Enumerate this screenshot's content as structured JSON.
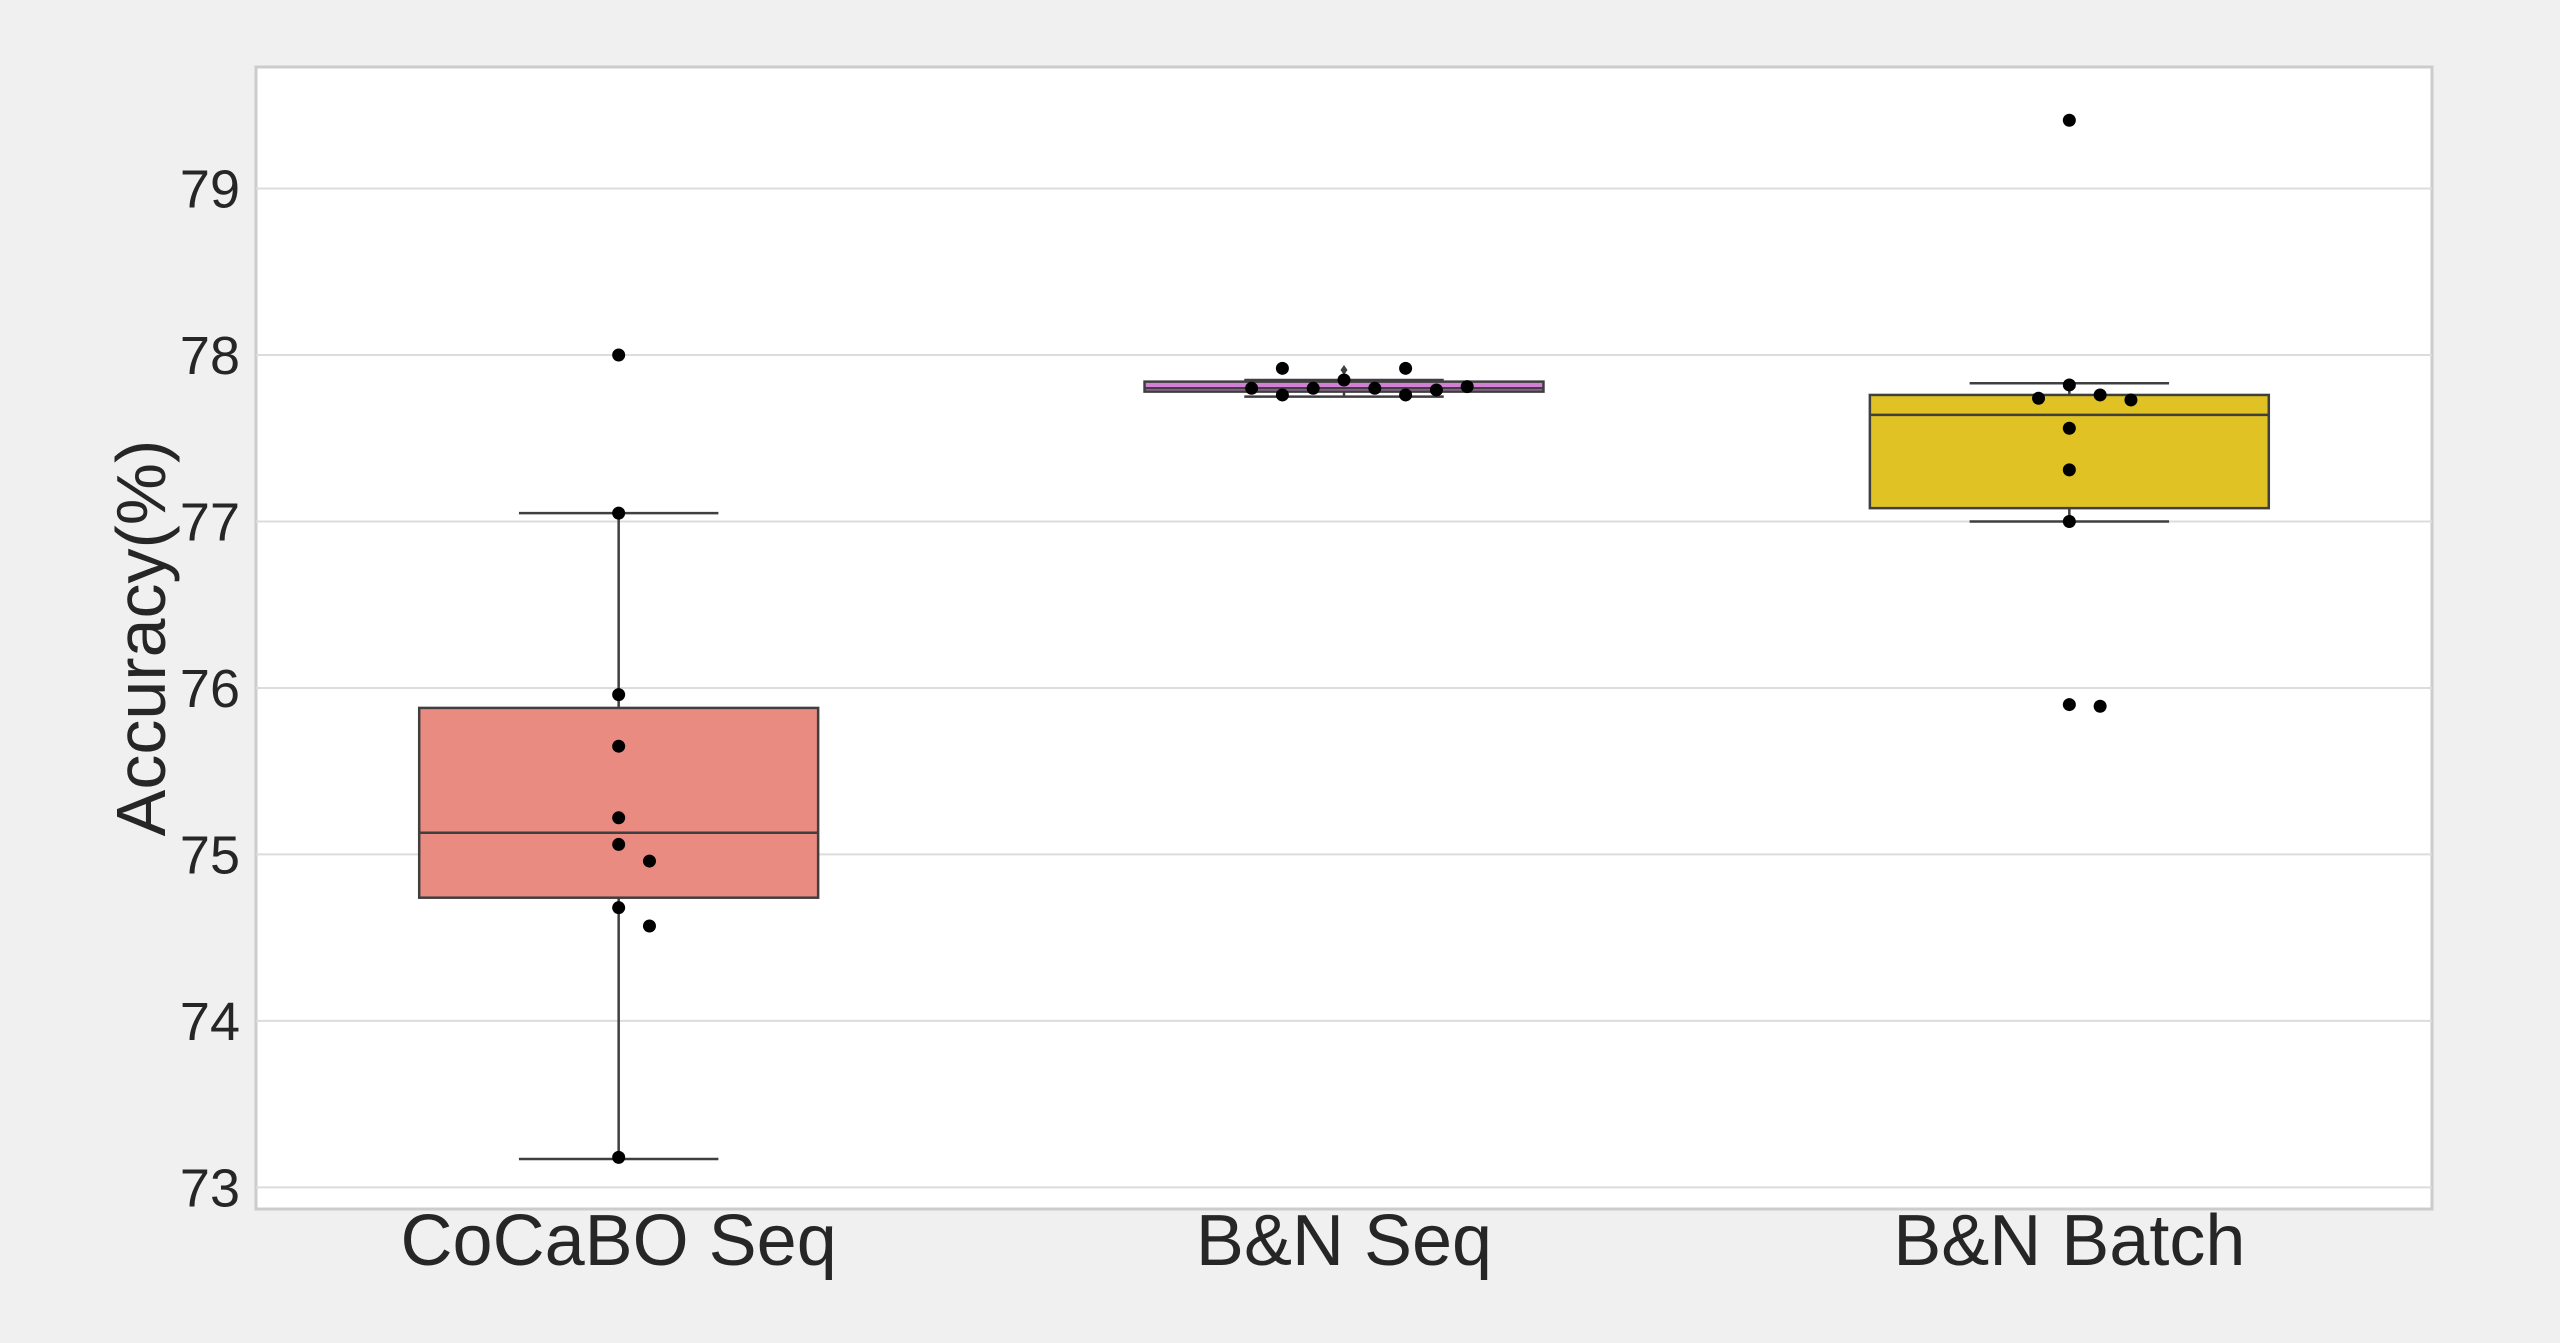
{
  "chart_data": {
    "type": "box",
    "ylabel": "Accuracy(%)",
    "xlabel": "",
    "title": "",
    "ylim": [
      72.87,
      79.73
    ],
    "yticks": [
      73,
      74,
      75,
      76,
      77,
      78,
      79
    ],
    "grid": true,
    "categories": [
      "CoCaBO Seq",
      "B&N Seq",
      "B&N Batch"
    ],
    "boxes": [
      {
        "category": "CoCaBO Seq",
        "color": "#e98b80",
        "whisker_low": 73.17,
        "q1": 74.74,
        "median": 75.13,
        "q3": 75.88,
        "whisker_high": 77.05,
        "outliers": [],
        "points": [
          78.0,
          77.05,
          75.96,
          75.65,
          75.22,
          75.06,
          74.96,
          74.68,
          74.57,
          73.18
        ]
      },
      {
        "category": "B&N Seq",
        "color": "#d37fd6",
        "whisker_low": 77.75,
        "q1": 77.78,
        "median": 77.8,
        "q3": 77.84,
        "whisker_high": 77.85,
        "outliers": [
          77.91
        ],
        "points": [
          77.85,
          77.8,
          77.8,
          77.76,
          77.76,
          77.79,
          77.8,
          77.81,
          77.92,
          77.92
        ]
      },
      {
        "category": "B&N Batch",
        "color": "#e0c224",
        "whisker_low": 77.0,
        "q1": 77.08,
        "median": 77.64,
        "q3": 77.76,
        "whisker_high": 77.83,
        "outliers": [],
        "points": [
          79.41,
          77.82,
          77.76,
          77.74,
          77.73,
          77.56,
          77.31,
          77.0,
          75.9,
          75.89
        ]
      }
    ]
  }
}
